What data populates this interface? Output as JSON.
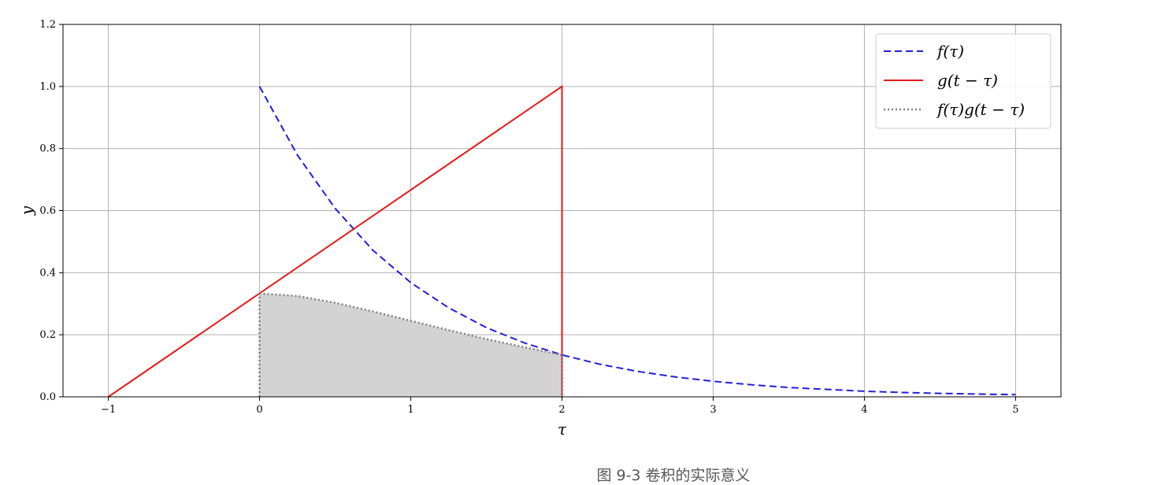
{
  "caption": "图 9-3 卷积的实际意义",
  "chart_data": {
    "type": "line",
    "xlabel": "τ",
    "ylabel": "y",
    "xlim": [
      -1.3,
      5.3
    ],
    "ylim": [
      0,
      1.2
    ],
    "xticks": [
      -1,
      0,
      1,
      2,
      3,
      4,
      5
    ],
    "xtick_labels": [
      "−1",
      "0",
      "1",
      "2",
      "3",
      "4",
      "5"
    ],
    "yticks": [
      0.0,
      0.2,
      0.4,
      0.6,
      0.8,
      1.0,
      1.2
    ],
    "ytick_labels": [
      "0.0",
      "0.2",
      "0.4",
      "0.6",
      "0.8",
      "1.0",
      "1.2"
    ],
    "grid": true,
    "legend_position": "top-right",
    "series": [
      {
        "name": "f(τ)",
        "style": "dashed",
        "color": "#1f1fdc",
        "x": [
          0,
          0.25,
          0.5,
          0.75,
          1.0,
          1.25,
          1.5,
          1.75,
          2.0,
          2.25,
          2.5,
          2.75,
          3.0,
          3.25,
          3.5,
          3.75,
          4.0,
          4.25,
          4.5,
          4.75,
          5.0
        ],
        "y": [
          1.0,
          0.779,
          0.607,
          0.472,
          0.368,
          0.287,
          0.223,
          0.174,
          0.135,
          0.105,
          0.082,
          0.064,
          0.05,
          0.039,
          0.03,
          0.024,
          0.018,
          0.014,
          0.011,
          0.009,
          0.007
        ]
      },
      {
        "name": "g(t − τ)",
        "style": "solid",
        "color": "#e41a1c",
        "x": [
          -1,
          2,
          2
        ],
        "y": [
          0,
          1.0,
          0
        ]
      },
      {
        "name": "f(τ)g(t − τ)",
        "style": "dotted",
        "color": "#808080",
        "fill": "#d3d3d3",
        "x": [
          0,
          0,
          0.25,
          0.5,
          0.75,
          1.0,
          1.25,
          1.5,
          1.75,
          2.0,
          2.0
        ],
        "y": [
          0,
          0.333,
          0.325,
          0.303,
          0.275,
          0.245,
          0.215,
          0.186,
          0.16,
          0.135,
          0
        ]
      }
    ]
  }
}
